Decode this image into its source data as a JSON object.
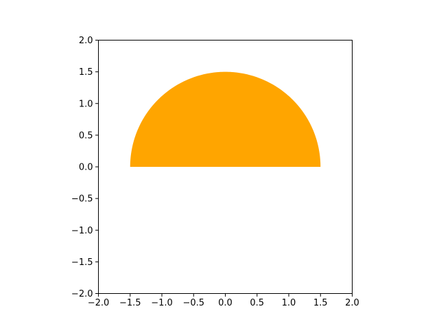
{
  "chart_data": {
    "type": "area",
    "title": "",
    "xlabel": "",
    "ylabel": "",
    "xlim": [
      -2.0,
      2.0
    ],
    "ylim": [
      -2.0,
      2.0
    ],
    "x_ticks": [
      "−2.0",
      "−1.5",
      "−1.0",
      "−0.5",
      "0.0",
      "0.5",
      "1.0",
      "1.5",
      "2.0"
    ],
    "y_ticks": [
      "−2.0",
      "−1.5",
      "−1.0",
      "−0.5",
      "0.0",
      "0.5",
      "1.0",
      "1.5",
      "2.0"
    ],
    "grid": false,
    "legend": "none",
    "aspect": "equal",
    "series": [
      {
        "shape": "upper semicircle",
        "center": [
          0.0,
          0.0
        ],
        "radius": 1.5,
        "angle_range_deg": [
          0,
          180
        ],
        "color": "#ffa500"
      }
    ]
  }
}
